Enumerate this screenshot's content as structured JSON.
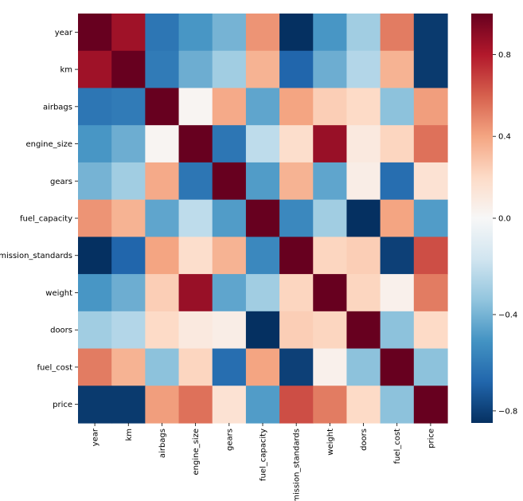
{
  "chart_data": {
    "type": "heatmap",
    "title": "",
    "xlabel": "",
    "ylabel": "",
    "variables": [
      "year",
      "km",
      "airbags",
      "engine_size",
      "gears",
      "fuel_capacity",
      "emission_standards",
      "weight",
      "doors",
      "fuel_cost",
      "price"
    ],
    "matrix": [
      [
        1.0,
        0.85,
        -0.62,
        -0.5,
        -0.4,
        0.45,
        -0.85,
        -0.5,
        -0.3,
        0.52,
        -0.82
      ],
      [
        0.85,
        1.0,
        -0.6,
        -0.42,
        -0.3,
        0.35,
        -0.68,
        -0.42,
        -0.25,
        0.35,
        -0.82
      ],
      [
        -0.62,
        -0.6,
        1.0,
        0.02,
        0.38,
        -0.45,
        0.4,
        0.25,
        0.2,
        -0.35,
        0.42
      ],
      [
        -0.5,
        -0.42,
        0.02,
        1.0,
        -0.62,
        -0.22,
        0.18,
        0.87,
        0.1,
        0.22,
        0.55
      ],
      [
        -0.4,
        -0.3,
        0.38,
        -0.62,
        1.0,
        -0.48,
        0.35,
        -0.45,
        0.07,
        -0.65,
        0.15
      ],
      [
        0.45,
        0.35,
        -0.45,
        -0.22,
        -0.48,
        1.0,
        -0.55,
        -0.3,
        -0.85,
        0.4,
        -0.48
      ],
      [
        -0.85,
        -0.68,
        0.4,
        0.18,
        0.35,
        -0.55,
        1.0,
        0.22,
        0.25,
        -0.8,
        0.65
      ],
      [
        -0.5,
        -0.42,
        0.25,
        0.87,
        -0.45,
        -0.3,
        0.22,
        1.0,
        0.22,
        0.05,
        0.52
      ],
      [
        -0.3,
        -0.25,
        0.2,
        0.1,
        0.07,
        -0.85,
        0.25,
        0.22,
        1.0,
        -0.35,
        0.2
      ],
      [
        0.52,
        0.35,
        -0.35,
        0.22,
        -0.65,
        0.4,
        -0.8,
        0.05,
        -0.35,
        1.0,
        -0.35
      ],
      [
        -0.82,
        -0.82,
        0.42,
        0.55,
        0.15,
        -0.48,
        0.65,
        0.52,
        0.2,
        -0.35,
        1.0
      ]
    ],
    "vmin": -0.85,
    "vmax": 1.0,
    "colormap": "RdBu_r",
    "colorbar": {
      "ticks": [
        0.8,
        0.4,
        0.0,
        -0.4,
        -0.8
      ],
      "tick_labels": [
        "0.8",
        "0.4",
        "0.0",
        "−0.4",
        "−0.8"
      ]
    },
    "colormap_stops": [
      "#053061",
      "#2166ac",
      "#4393c3",
      "#92c5de",
      "#d1e5f0",
      "#f7f7f7",
      "#fddbc7",
      "#f4a582",
      "#d6604d",
      "#b2182b",
      "#67001f"
    ]
  }
}
